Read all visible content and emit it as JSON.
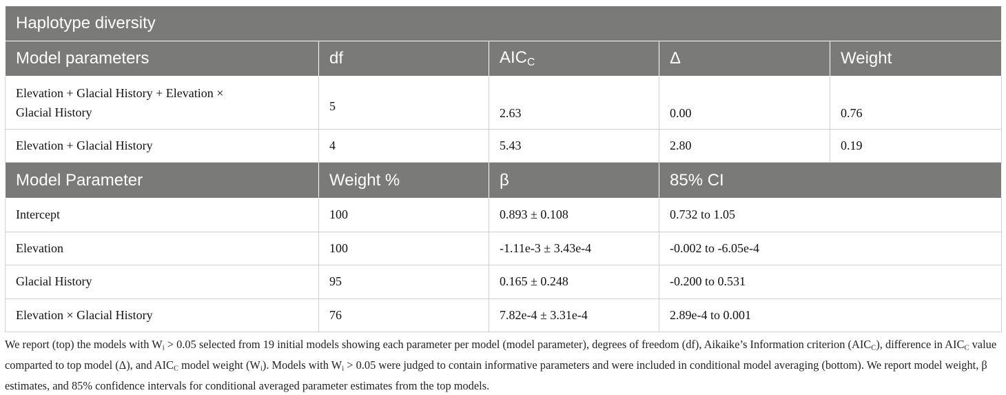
{
  "table": {
    "title": "Haplotype diversity",
    "models_header": {
      "c1": "Model parameters",
      "c2": "df",
      "c3_main": "AIC",
      "c3_sub": "C",
      "c4": "Δ",
      "c5": "Weight"
    },
    "models": [
      {
        "name_line1": "Elevation + Glacial History + Elevation ×",
        "name_line2": "Glacial History",
        "df": "5",
        "aicc": "2.63",
        "delta": "0.00",
        "weight": "0.76"
      },
      {
        "name": "Elevation + Glacial History",
        "df": "4",
        "aicc": "5.43",
        "delta": "2.80",
        "weight": "0.19"
      }
    ],
    "params_header": {
      "c1": "Model Parameter",
      "c2": "Weight %",
      "c3": "β",
      "c4": "85% CI"
    },
    "params": [
      {
        "name": "Intercept",
        "weight": "100",
        "beta": "0.893 ± 0.108",
        "ci": "0.732 to 1.05"
      },
      {
        "name": "Elevation",
        "weight": "100",
        "beta": "-1.11e-3 ± 3.43e-4",
        "ci": "-0.002 to -6.05e-4"
      },
      {
        "name": "Glacial History",
        "weight": "95",
        "beta": "0.165 ± 0.248",
        "ci": "-0.200 to 0.531"
      },
      {
        "name": "Elevation × Glacial History",
        "weight": "76",
        "beta": "7.82e-4 ± 3.31e-4",
        "ci": "2.89e-4 to 0.001"
      }
    ]
  },
  "footnote": {
    "s1": "We report (top) the models with W",
    "s1_sub": "i",
    "s2": " > 0.05 selected from 19 initial models showing each parameter per model (model parameter), degrees of freedom (df), Aikaike’s Information criterion (AIC",
    "s2_sub": "C",
    "s3": "), difference in AIC",
    "s3_sub": "C",
    "s4": " value comparted to top model (Δ), and AIC",
    "s4_sub": "C",
    "s5": " model weight (W",
    "s5_sub": "i",
    "s6": "). Models with W",
    "s6_sub": "i",
    "s7": " > 0.05 were judged to contain informative parameters and were included in conditional model averaging (bottom). We report model weight, β estimates, and 85% confidence intervals for conditional averaged parameter estimates from the top models."
  }
}
